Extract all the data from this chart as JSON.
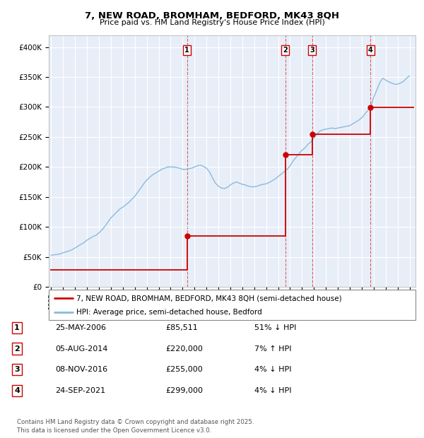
{
  "title": "7, NEW ROAD, BROMHAM, BEDFORD, MK43 8QH",
  "subtitle": "Price paid vs. HM Land Registry's House Price Index (HPI)",
  "background_color": "#ffffff",
  "plot_bg_color": "#e8eef8",
  "grid_color": "#ffffff",
  "ylabel_ticks": [
    "£0",
    "£50K",
    "£100K",
    "£150K",
    "£200K",
    "£250K",
    "£300K",
    "£350K",
    "£400K"
  ],
  "ytick_values": [
    0,
    50000,
    100000,
    150000,
    200000,
    250000,
    300000,
    350000,
    400000
  ],
  "ylim": [
    0,
    420000
  ],
  "xlim_start": 1994.8,
  "xlim_end": 2025.5,
  "sale_color": "#cc0000",
  "hpi_color": "#88bbdd",
  "legend_label_sale": "7, NEW ROAD, BROMHAM, BEDFORD, MK43 8QH (semi-detached house)",
  "legend_label_hpi": "HPI: Average price, semi-detached house, Bedford",
  "transactions": [
    {
      "num": 1,
      "date_str": "25-MAY-2006",
      "price": 85511,
      "pct": "51%",
      "dir": "↓",
      "year": 2006.38
    },
    {
      "num": 2,
      "date_str": "05-AUG-2014",
      "price": 220000,
      "pct": "7%",
      "dir": "↑",
      "year": 2014.59
    },
    {
      "num": 3,
      "date_str": "08-NOV-2016",
      "price": 255000,
      "pct": "4%",
      "dir": "↓",
      "year": 2016.85
    },
    {
      "num": 4,
      "date_str": "24-SEP-2021",
      "price": 299000,
      "pct": "4%",
      "dir": "↓",
      "year": 2021.73
    }
  ],
  "footer": "Contains HM Land Registry data © Crown copyright and database right 2025.\nThis data is licensed under the Open Government Licence v3.0.",
  "hpi_years": [
    1995.0,
    1995.25,
    1995.5,
    1995.75,
    1996.0,
    1996.25,
    1996.5,
    1996.75,
    1997.0,
    1997.25,
    1997.5,
    1997.75,
    1998.0,
    1998.25,
    1998.5,
    1998.75,
    1999.0,
    1999.25,
    1999.5,
    1999.75,
    2000.0,
    2000.25,
    2000.5,
    2000.75,
    2001.0,
    2001.25,
    2001.5,
    2001.75,
    2002.0,
    2002.25,
    2002.5,
    2002.75,
    2003.0,
    2003.25,
    2003.5,
    2003.75,
    2004.0,
    2004.25,
    2004.5,
    2004.75,
    2005.0,
    2005.25,
    2005.5,
    2005.75,
    2006.0,
    2006.25,
    2006.5,
    2006.75,
    2007.0,
    2007.25,
    2007.5,
    2007.75,
    2008.0,
    2008.25,
    2008.5,
    2008.75,
    2009.0,
    2009.25,
    2009.5,
    2009.75,
    2010.0,
    2010.25,
    2010.5,
    2010.75,
    2011.0,
    2011.25,
    2011.5,
    2011.75,
    2012.0,
    2012.25,
    2012.5,
    2012.75,
    2013.0,
    2013.25,
    2013.5,
    2013.75,
    2014.0,
    2014.25,
    2014.5,
    2014.75,
    2015.0,
    2015.25,
    2015.5,
    2015.75,
    2016.0,
    2016.25,
    2016.5,
    2016.75,
    2017.0,
    2017.25,
    2017.5,
    2017.75,
    2018.0,
    2018.25,
    2018.5,
    2018.75,
    2019.0,
    2019.25,
    2019.5,
    2019.75,
    2020.0,
    2020.25,
    2020.5,
    2020.75,
    2021.0,
    2021.25,
    2021.5,
    2021.75,
    2022.0,
    2022.25,
    2022.5,
    2022.75,
    2023.0,
    2023.25,
    2023.5,
    2023.75,
    2024.0,
    2024.25,
    2024.5,
    2024.75,
    2025.0
  ],
  "hpi_values": [
    53000,
    53500,
    54000,
    55000,
    57000,
    58500,
    60000,
    62000,
    65000,
    68000,
    71000,
    74000,
    78000,
    81000,
    84000,
    86000,
    90000,
    95000,
    101000,
    108000,
    115000,
    120000,
    125000,
    130000,
    133000,
    137000,
    141000,
    146000,
    151000,
    158000,
    165000,
    172000,
    178000,
    183000,
    187000,
    190000,
    193000,
    196000,
    198000,
    200000,
    200000,
    200000,
    199000,
    198000,
    196000,
    196000,
    197000,
    198000,
    200000,
    202000,
    203000,
    201000,
    198000,
    192000,
    182000,
    173000,
    168000,
    165000,
    164000,
    166000,
    170000,
    173000,
    175000,
    173000,
    171000,
    170000,
    168000,
    167000,
    167000,
    168000,
    170000,
    171000,
    172000,
    174000,
    177000,
    180000,
    184000,
    188000,
    192000,
    196000,
    202000,
    210000,
    216000,
    222000,
    228000,
    232000,
    238000,
    242000,
    248000,
    255000,
    260000,
    262000,
    263000,
    264000,
    265000,
    264000,
    265000,
    266000,
    267000,
    268000,
    269000,
    272000,
    275000,
    278000,
    282000,
    288000,
    294000,
    300000,
    316000,
    328000,
    340000,
    348000,
    345000,
    342000,
    340000,
    338000,
    338000,
    340000,
    343000,
    348000,
    352000
  ],
  "sale_years": [
    1995.0,
    2006.38,
    2006.38,
    2014.59,
    2014.59,
    2016.85,
    2016.85,
    2021.73,
    2021.73,
    2025.3
  ],
  "sale_values": [
    28000,
    28000,
    85511,
    85511,
    220000,
    220000,
    255000,
    255000,
    299000,
    299000
  ]
}
